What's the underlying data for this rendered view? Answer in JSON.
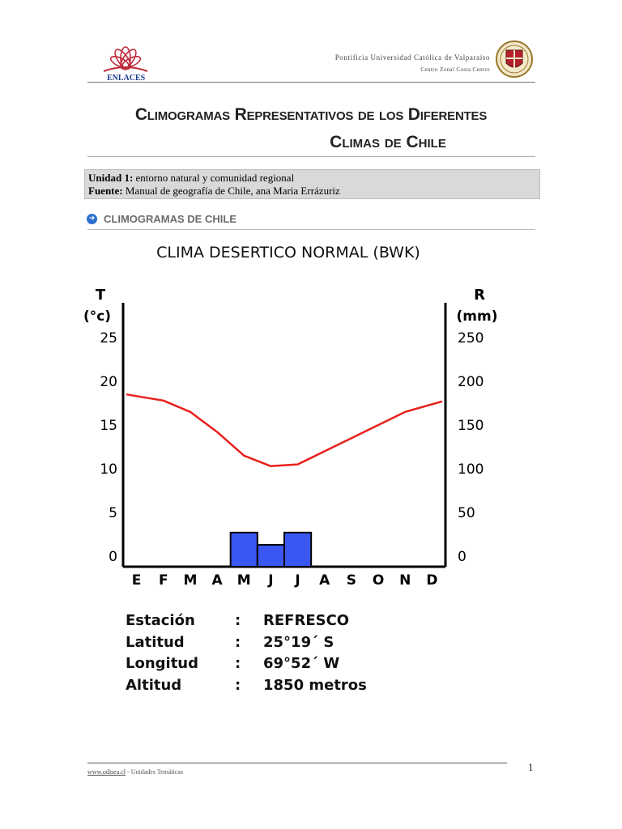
{
  "header": {
    "logo_text": "ENLACES",
    "university": "Pontificia  Universidad  Católica de Valparaíso",
    "subunit": "Centro Zonal Costa Centro"
  },
  "title": {
    "line1": "Climogramas  Representativos de los Diferentes",
    "line2": "Climas de Chile"
  },
  "info": {
    "unidad_label": "Unidad 1:",
    "unidad_value": " entorno natural y comunidad regional",
    "fuente_label": "Fuente:",
    "fuente_value": " Manual de geografía de Chile, ana Maria  Errázuriz"
  },
  "section": {
    "label": "CLIMOGRAMAS DE CHILE"
  },
  "chart_data": {
    "type": "bar",
    "title": "CLIMA DESERTICO NORMAL (BWK)",
    "categories": [
      "E",
      "F",
      "M",
      "A",
      "M",
      "J",
      "J",
      "A",
      "S",
      "O",
      "N",
      "D"
    ],
    "left_axis": {
      "label_top": "T",
      "label_unit": "(°c)",
      "ylim": [
        0,
        25
      ],
      "ticks": [
        "0",
        "5",
        "10",
        "15",
        "20",
        "25"
      ]
    },
    "right_axis": {
      "label_top": "R",
      "label_unit": "(mm)",
      "ylim": [
        0,
        250
      ],
      "ticks": [
        "0",
        "50",
        "100",
        "150",
        "200",
        "250"
      ]
    },
    "series": [
      {
        "kind": "line",
        "axis": "left",
        "color": "#e8201c",
        "values": [
          18.5,
          17.8,
          16.5,
          14.2,
          11.5,
          10.3,
          10.5,
          12,
          13.5,
          15,
          16.5,
          17.7
        ]
      },
      {
        "kind": "bar",
        "axis": "right",
        "color": "#3a57f2",
        "values": [
          0,
          0,
          0,
          0,
          27,
          13,
          27,
          0,
          0,
          0,
          0,
          0
        ]
      }
    ]
  },
  "station": {
    "rows": [
      {
        "label": "Estación",
        "sep": ":",
        "value": "REFRESCO"
      },
      {
        "label": "Latitud",
        "sep": ":",
        "value": "25°19´ S"
      },
      {
        "label": "Longitud",
        "sep": ":",
        "value": "69°52´ W"
      },
      {
        "label": "Altitud",
        "sep": ":",
        "value": "1850 metros"
      }
    ]
  },
  "footer": {
    "link": "www.odisea.cl",
    "text": "  -  Unidades Temáticas",
    "page": "1"
  }
}
